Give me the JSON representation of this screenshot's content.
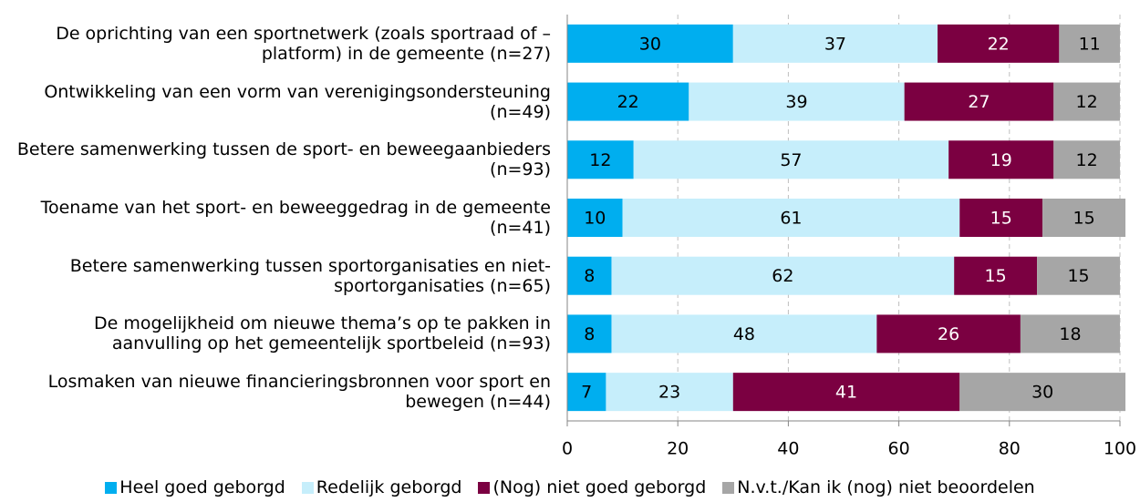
{
  "chart_data": {
    "type": "stacked-barh",
    "categories": [
      "De oprichting van een sportnetwerk (zoals sportraad of – platform) in de gemeente (n=27)",
      "Ontwikkeling van een vorm van verenigingsondersteuning (n=49)",
      "Betere samenwerking tussen de sport- en beweegaanbieders (n=93)",
      "Toename van het sport- en beweeggedrag in de gemeente (n=41)",
      "Betere samenwerking tussen sportorganisaties en niet-sportorganisaties (n=65)",
      "De mogelijkheid om nieuwe thema’s op te pakken in aanvulling op het gemeentelijk sportbeleid (n=93)",
      "Losmaken van nieuwe financieringsbronnen voor sport en bewegen (n=44)"
    ],
    "series": [
      {
        "name": "Heel goed geborgd",
        "color": "#00aeef",
        "values": [
          30,
          22,
          12,
          10,
          8,
          8,
          7
        ]
      },
      {
        "name": "Redelijk geborgd",
        "color": "#c6eefb",
        "values": [
          37,
          39,
          57,
          61,
          62,
          48,
          23
        ]
      },
      {
        "name": "(Nog) niet goed geborgd",
        "color": "#7b0041",
        "values": [
          22,
          27,
          19,
          15,
          15,
          26,
          41
        ]
      },
      {
        "name": "N.v.t./Kan ik (nog) niet beoordelen",
        "color": "#a6a6a6",
        "values": [
          11,
          12,
          12,
          15,
          15,
          18,
          30
        ]
      }
    ],
    "xlim": [
      0,
      100
    ],
    "xticks": [
      0,
      20,
      40,
      60,
      80,
      100
    ],
    "grid": true,
    "legend": "bottom"
  }
}
